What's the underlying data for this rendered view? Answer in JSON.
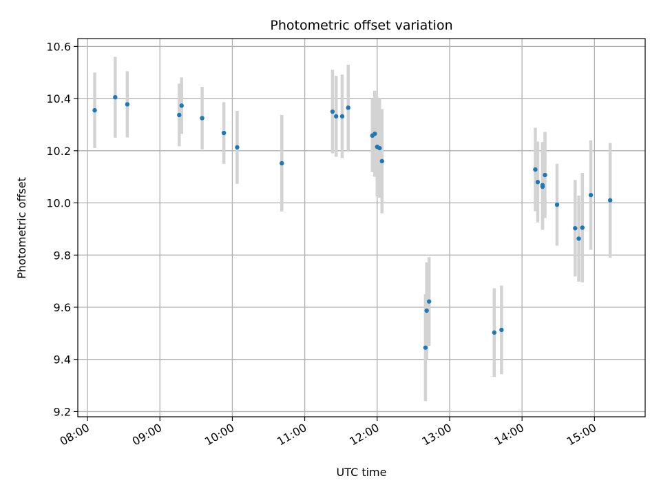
{
  "chart_data": {
    "type": "scatter",
    "title": "Photometric offset variation",
    "xlabel": "UTC time",
    "ylabel": "Photometric offset",
    "x_ticks": [
      "08:00",
      "09:00",
      "10:00",
      "11:00",
      "12:00",
      "13:00",
      "14:00",
      "15:00"
    ],
    "y_ticks": [
      "9.2",
      "9.4",
      "9.6",
      "9.8",
      "10.0",
      "10.2",
      "10.4",
      "10.6"
    ],
    "xlim": [
      "07:52",
      "15:42"
    ],
    "ylim": [
      9.18,
      10.63
    ],
    "grid": true,
    "colors": {
      "point": "#1f77b4",
      "errorbar": "#d3d3d3",
      "grid": "#b0b0b0"
    },
    "points": [
      {
        "x": "08:06",
        "y": 10.355,
        "yerr": 0.145
      },
      {
        "x": "08:23",
        "y": 10.405,
        "yerr": 0.155
      },
      {
        "x": "08:33",
        "y": 10.378,
        "yerr": 0.127
      },
      {
        "x": "09:16",
        "y": 10.337,
        "yerr": 0.12
      },
      {
        "x": "09:18",
        "y": 10.373,
        "yerr": 0.108
      },
      {
        "x": "09:35",
        "y": 10.325,
        "yerr": 0.12
      },
      {
        "x": "09:53",
        "y": 10.268,
        "yerr": 0.118
      },
      {
        "x": "10:04",
        "y": 10.213,
        "yerr": 0.14
      },
      {
        "x": "10:41",
        "y": 10.152,
        "yerr": 0.185
      },
      {
        "x": "11:23",
        "y": 10.35,
        "yerr": 0.16
      },
      {
        "x": "11:26",
        "y": 10.332,
        "yerr": 0.155
      },
      {
        "x": "11:31",
        "y": 10.332,
        "yerr": 0.16
      },
      {
        "x": "11:36",
        "y": 10.365,
        "yerr": 0.165
      },
      {
        "x": "11:56",
        "y": 10.258,
        "yerr": 0.14
      },
      {
        "x": "11:58",
        "y": 10.265,
        "yerr": 0.165
      },
      {
        "x": "12:00",
        "y": 10.215,
        "yerr": 0.19
      },
      {
        "x": "12:02",
        "y": 10.21,
        "yerr": 0.19
      },
      {
        "x": "12:04",
        "y": 10.16,
        "yerr": 0.2
      },
      {
        "x": "12:40",
        "y": 9.445,
        "yerr": 0.205
      },
      {
        "x": "12:41",
        "y": 9.587,
        "yerr": 0.185
      },
      {
        "x": "12:43",
        "y": 9.622,
        "yerr": 0.17
      },
      {
        "x": "13:37",
        "y": 9.503,
        "yerr": 0.17
      },
      {
        "x": "13:43",
        "y": 9.513,
        "yerr": 0.17
      },
      {
        "x": "14:11",
        "y": 10.128,
        "yerr": 0.16
      },
      {
        "x": "14:13",
        "y": 10.08,
        "yerr": 0.155
      },
      {
        "x": "14:17",
        "y": 10.062,
        "yerr": 0.165
      },
      {
        "x": "14:17",
        "y": 10.068,
        "yerr": 0.165
      },
      {
        "x": "14:19",
        "y": 10.107,
        "yerr": 0.165
      },
      {
        "x": "14:29",
        "y": 9.993,
        "yerr": 0.157
      },
      {
        "x": "14:44",
        "y": 9.903,
        "yerr": 0.185
      },
      {
        "x": "14:47",
        "y": 9.863,
        "yerr": 0.165
      },
      {
        "x": "14:50",
        "y": 9.905,
        "yerr": 0.21
      },
      {
        "x": "14:57",
        "y": 10.03,
        "yerr": 0.21
      },
      {
        "x": "15:13",
        "y": 10.01,
        "yerr": 0.22
      }
    ]
  }
}
